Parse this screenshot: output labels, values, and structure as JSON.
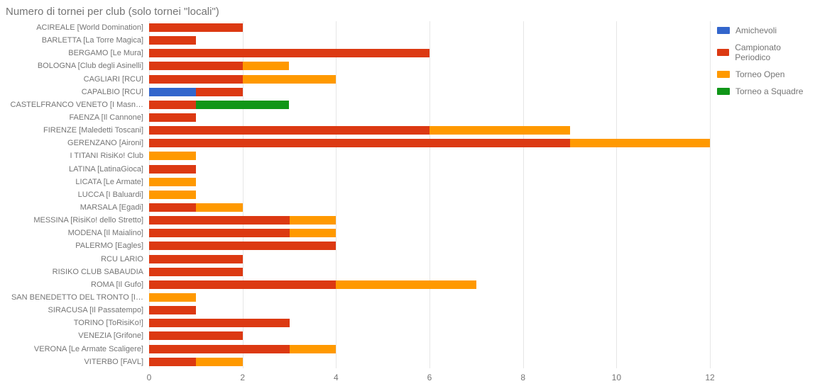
{
  "title": "Numero di tornei per club (solo tornei \"locali\")",
  "colors": {
    "amichevoli": "#3366cc",
    "campionato": "#dc3912",
    "open": "#ff9900",
    "squadre": "#109618",
    "grid": "#e6e6e6",
    "text": "#757575",
    "bg": "#ffffff"
  },
  "legend": [
    {
      "key": "amichevoli",
      "label": "Amichevoli"
    },
    {
      "key": "campionato",
      "label": "Campionato Periodico"
    },
    {
      "key": "open",
      "label": "Torneo Open"
    },
    {
      "key": "squadre",
      "label": "Torneo a Squadre"
    }
  ],
  "x": {
    "min": 0,
    "max": 12,
    "ticks": [
      0,
      2,
      4,
      6,
      8,
      10,
      12
    ]
  },
  "rows": [
    {
      "label": "ACIREALE [World Domination]",
      "amichevoli": 0,
      "campionato": 2,
      "open": 0,
      "squadre": 0
    },
    {
      "label": "BARLETTA [La Torre Magica]",
      "amichevoli": 0,
      "campionato": 1,
      "open": 0,
      "squadre": 0
    },
    {
      "label": "BERGAMO [Le Mura]",
      "amichevoli": 0,
      "campionato": 6,
      "open": 0,
      "squadre": 0
    },
    {
      "label": "BOLOGNA [Club degli Asinelli]",
      "amichevoli": 0,
      "campionato": 2,
      "open": 1,
      "squadre": 0
    },
    {
      "label": "CAGLIARI [RCU]",
      "amichevoli": 0,
      "campionato": 2,
      "open": 2,
      "squadre": 0
    },
    {
      "label": "CAPALBIO [RCU]",
      "amichevoli": 1,
      "campionato": 1,
      "open": 0,
      "squadre": 0
    },
    {
      "label": "CASTELFRANCO VENETO [I Masn…",
      "amichevoli": 0,
      "campionato": 1,
      "open": 0,
      "squadre": 2
    },
    {
      "label": "FAENZA [Il Cannone]",
      "amichevoli": 0,
      "campionato": 1,
      "open": 0,
      "squadre": 0
    },
    {
      "label": "FIRENZE [Maledetti Toscani]",
      "amichevoli": 0,
      "campionato": 6,
      "open": 3,
      "squadre": 0
    },
    {
      "label": "GERENZANO [Aironi]",
      "amichevoli": 0,
      "campionato": 9,
      "open": 3,
      "squadre": 0
    },
    {
      "label": "I TITANI RisiKo! Club",
      "amichevoli": 0,
      "campionato": 0,
      "open": 1,
      "squadre": 0
    },
    {
      "label": "LATINA [LatinaGioca]",
      "amichevoli": 0,
      "campionato": 1,
      "open": 0,
      "squadre": 0
    },
    {
      "label": "LICATA [Le Armate]",
      "amichevoli": 0,
      "campionato": 0,
      "open": 1,
      "squadre": 0
    },
    {
      "label": "LUCCA [I Baluardi]",
      "amichevoli": 0,
      "campionato": 0,
      "open": 1,
      "squadre": 0
    },
    {
      "label": "MARSALA [Egadi]",
      "amichevoli": 0,
      "campionato": 1,
      "open": 1,
      "squadre": 0
    },
    {
      "label": "MESSINA [RisiKo! dello Stretto]",
      "amichevoli": 0,
      "campionato": 3,
      "open": 1,
      "squadre": 0
    },
    {
      "label": "MODENA [Il Maialino]",
      "amichevoli": 0,
      "campionato": 3,
      "open": 1,
      "squadre": 0
    },
    {
      "label": "PALERMO [Eagles]",
      "amichevoli": 0,
      "campionato": 4,
      "open": 0,
      "squadre": 0
    },
    {
      "label": "RCU  LARIO",
      "amichevoli": 0,
      "campionato": 2,
      "open": 0,
      "squadre": 0
    },
    {
      "label": "RISIKO CLUB SABAUDIA",
      "amichevoli": 0,
      "campionato": 2,
      "open": 0,
      "squadre": 0
    },
    {
      "label": "ROMA [Il Gufo]",
      "amichevoli": 0,
      "campionato": 4,
      "open": 3,
      "squadre": 0
    },
    {
      "label": "SAN BENEDETTO DEL TRONTO [I…",
      "amichevoli": 0,
      "campionato": 0,
      "open": 1,
      "squadre": 0
    },
    {
      "label": "SIRACUSA [Il Passatempo]",
      "amichevoli": 0,
      "campionato": 1,
      "open": 0,
      "squadre": 0
    },
    {
      "label": "TORINO [ToRisiKo!]",
      "amichevoli": 0,
      "campionato": 3,
      "open": 0,
      "squadre": 0
    },
    {
      "label": "VENEZIA [Grifone]",
      "amichevoli": 0,
      "campionato": 2,
      "open": 0,
      "squadre": 0
    },
    {
      "label": "VERONA [Le Armate Scaligere]",
      "amichevoli": 0,
      "campionato": 3,
      "open": 1,
      "squadre": 0
    },
    {
      "label": "VITERBO [FAVL]",
      "amichevoli": 0,
      "campionato": 1,
      "open": 1,
      "squadre": 0
    }
  ]
}
